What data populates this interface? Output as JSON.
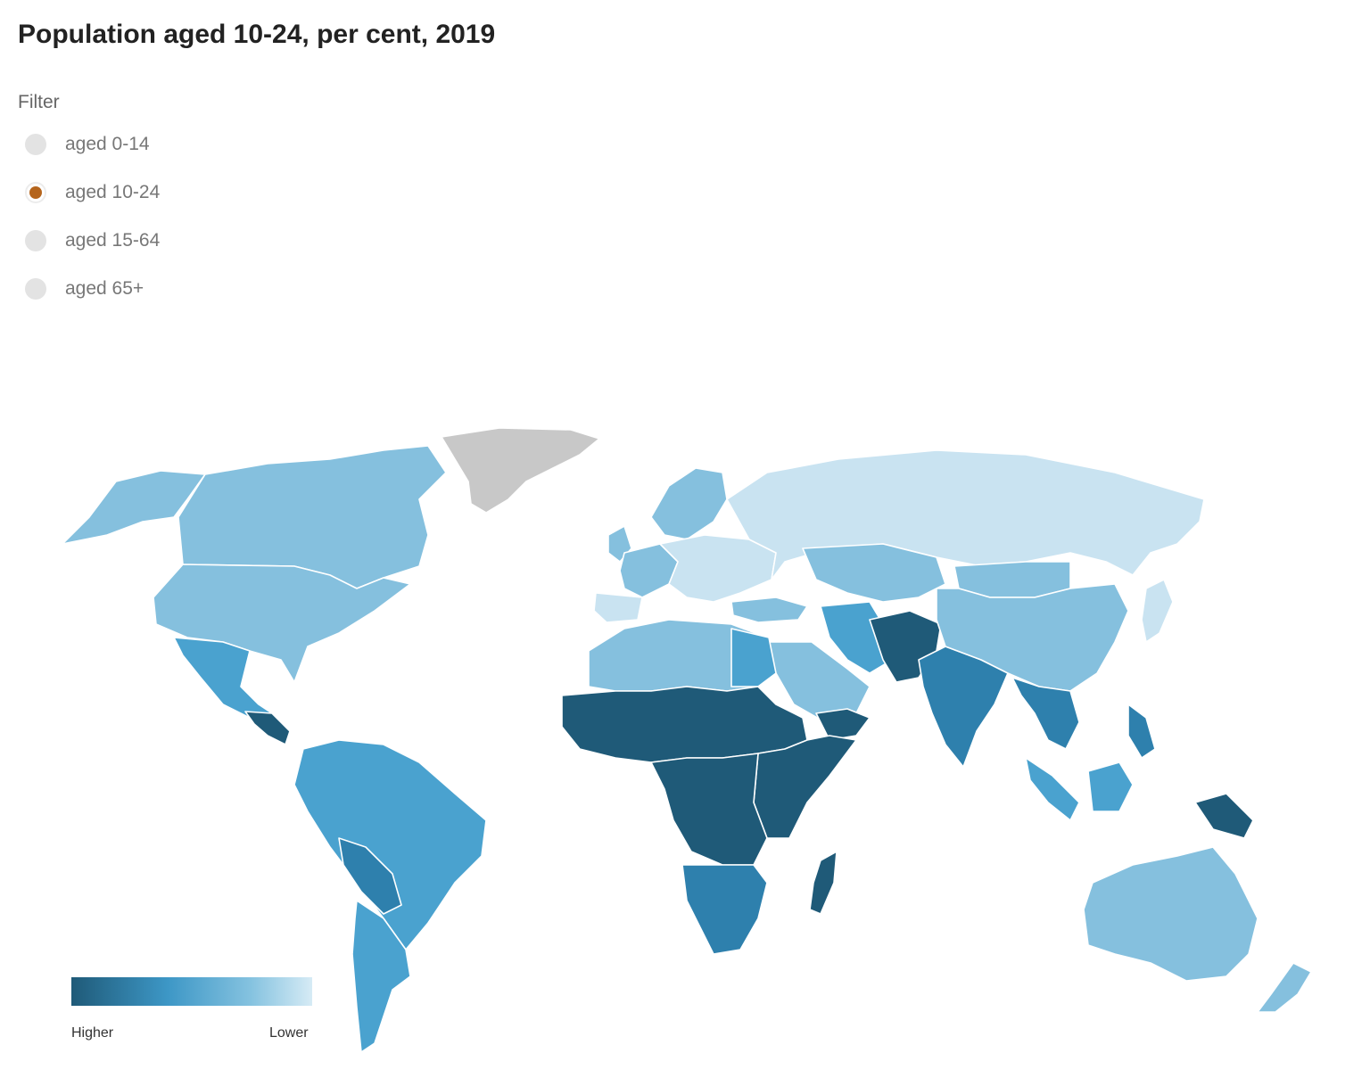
{
  "title": "Population aged 10-24, per cent, 2019",
  "filter": {
    "label": "Filter",
    "options": [
      {
        "label": "aged 0-14",
        "selected": false
      },
      {
        "label": "aged 10-24",
        "selected": true
      },
      {
        "label": "aged 15-64",
        "selected": false
      },
      {
        "label": "aged 65+",
        "selected": false
      }
    ],
    "selected_color": "#b5651d"
  },
  "legend": {
    "higher": "Higher",
    "lower": "Lower",
    "colors": [
      "#1f5a78",
      "#3d97c6",
      "#86c3e0",
      "#d6ebf5"
    ]
  },
  "map": {
    "no_data_color": "#c8c8c8",
    "levels": {
      "highest": "#1f5a78",
      "high": "#2e80ad",
      "mid": "#4aa2cf",
      "low": "#85c0de",
      "lowest": "#c9e3f1"
    }
  }
}
